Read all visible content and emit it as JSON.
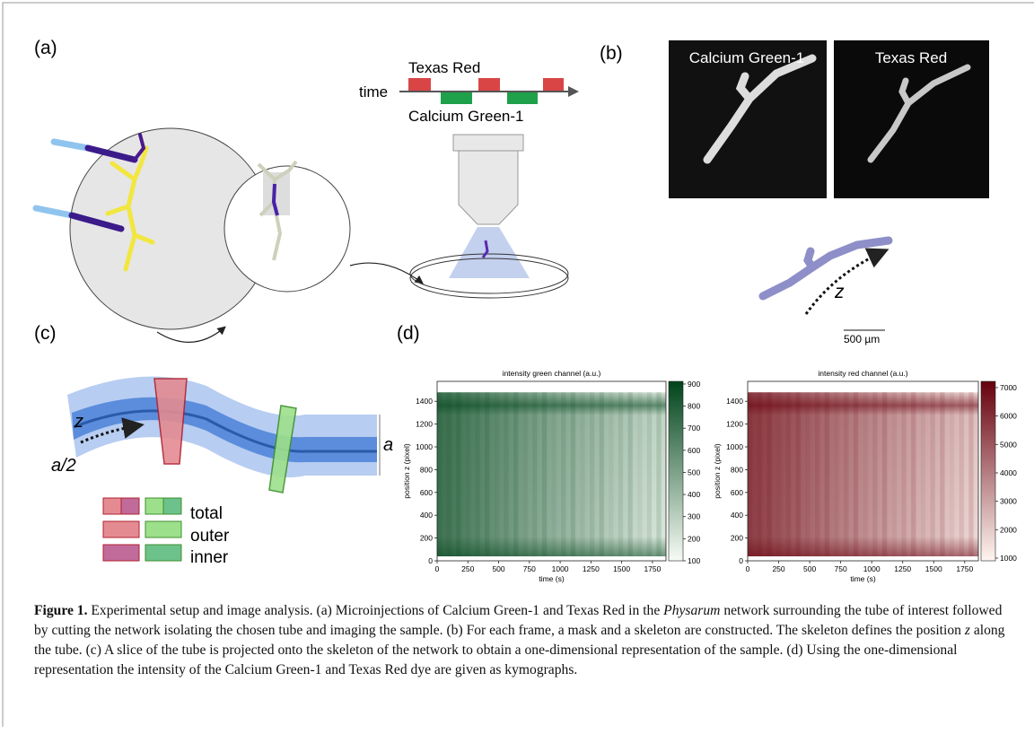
{
  "panel_a": {
    "label": "(a)",
    "timeline_label": "time",
    "dye_top": "Texas Red",
    "dye_bottom": "Calcium Green-1"
  },
  "panel_b": {
    "label": "(b)",
    "image_titles": [
      "Calcium Green-1",
      "Texas Red"
    ],
    "axis_label": "z",
    "scale_bar": "500 µm"
  },
  "panel_c": {
    "label": "(c)",
    "axis_label": "z",
    "half_width_label": "a/2",
    "width_label": "a",
    "legend": [
      "total",
      "outer",
      "inner"
    ]
  },
  "panel_d": {
    "label": "(d)"
  },
  "chart_data": [
    {
      "type": "heatmap",
      "title": "intensity green channel  (a.u.)",
      "xlabel": "time (s)",
      "ylabel": "position z (pixel)",
      "xlim": [
        0,
        1860
      ],
      "xticks": [
        0,
        250,
        500,
        750,
        1000,
        1250,
        1500,
        1750
      ],
      "ylim": [
        0,
        1575
      ],
      "yticks": [
        0,
        200,
        400,
        600,
        800,
        1000,
        1200,
        1400
      ],
      "clim": [
        100,
        912
      ],
      "cticks": [
        100,
        200,
        300,
        400,
        500,
        600,
        700,
        800,
        900
      ],
      "colors": [
        "#f7fcf5",
        "#00441b"
      ]
    },
    {
      "type": "heatmap",
      "title": "intensity red channel  (a.u.)",
      "xlabel": "time (s)",
      "ylabel": "position z (pixel)",
      "xlim": [
        0,
        1860
      ],
      "xticks": [
        0,
        250,
        500,
        750,
        1000,
        1250,
        1500,
        1750
      ],
      "ylim": [
        0,
        1575
      ],
      "yticks": [
        0,
        200,
        400,
        600,
        800,
        1000,
        1200,
        1400
      ],
      "clim": [
        905,
        7220
      ],
      "cticks": [
        1000,
        2000,
        3000,
        4000,
        5000,
        6000,
        7000
      ],
      "colors": [
        "#fff5f0",
        "#67000d"
      ]
    }
  ],
  "caption": {
    "label": "Figure 1.",
    "text_1": " Experimental setup and image analysis. (a) Microinjections of Calcium Green-1 and Texas Red in the ",
    "italic_1": "Physarum",
    "text_2": " network surrounding the tube of interest followed by cutting the network isolating the chosen tube and imaging the sample. (b) For each frame, a mask and a skeleton are constructed. The skeleton defines the position ",
    "italic_2": "z",
    "text_3": " along the tube. (c) A slice of the tube is projected onto the skeleton of the network to obtain a one-dimensional representation of the sample. (d) Using the one-dimensional representation the intensity of the Calcium Green-1 and Texas Red dye are given as kymographs."
  }
}
